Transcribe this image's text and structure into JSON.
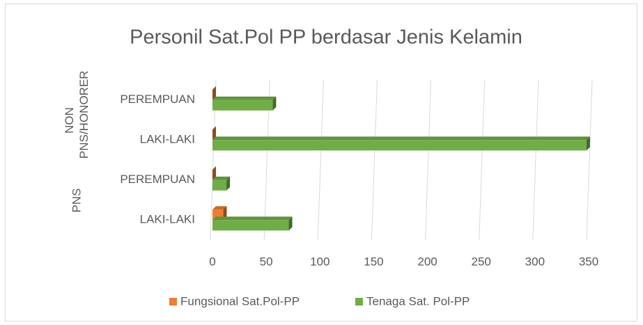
{
  "chart_data": {
    "type": "bar",
    "orientation": "horizontal",
    "title": "Personil Sat.Pol PP berdasar Jenis Kelamin",
    "categories": [
      "LAKI-LAKI",
      "PEREMPUAN",
      "LAKI-LAKI",
      "PEREMPUAN"
    ],
    "groups": [
      {
        "label": "PNS",
        "categories": [
          0,
          1
        ]
      },
      {
        "label": "NON PNS/HONORER",
        "categories": [
          2,
          3
        ]
      }
    ],
    "series": [
      {
        "name": "Fungsional Sat.Pol-PP",
        "color": "#ed7d31",
        "values": [
          10,
          0,
          0,
          0
        ]
      },
      {
        "name": "Tenaga Sat. Pol-PP",
        "color": "#70ad47",
        "values": [
          71,
          13,
          348,
          56
        ]
      }
    ],
    "xlim": [
      0,
      350
    ],
    "xticks": [
      0,
      50,
      100,
      150,
      200,
      250,
      300,
      350
    ],
    "grid": true,
    "legend": "bottom"
  }
}
